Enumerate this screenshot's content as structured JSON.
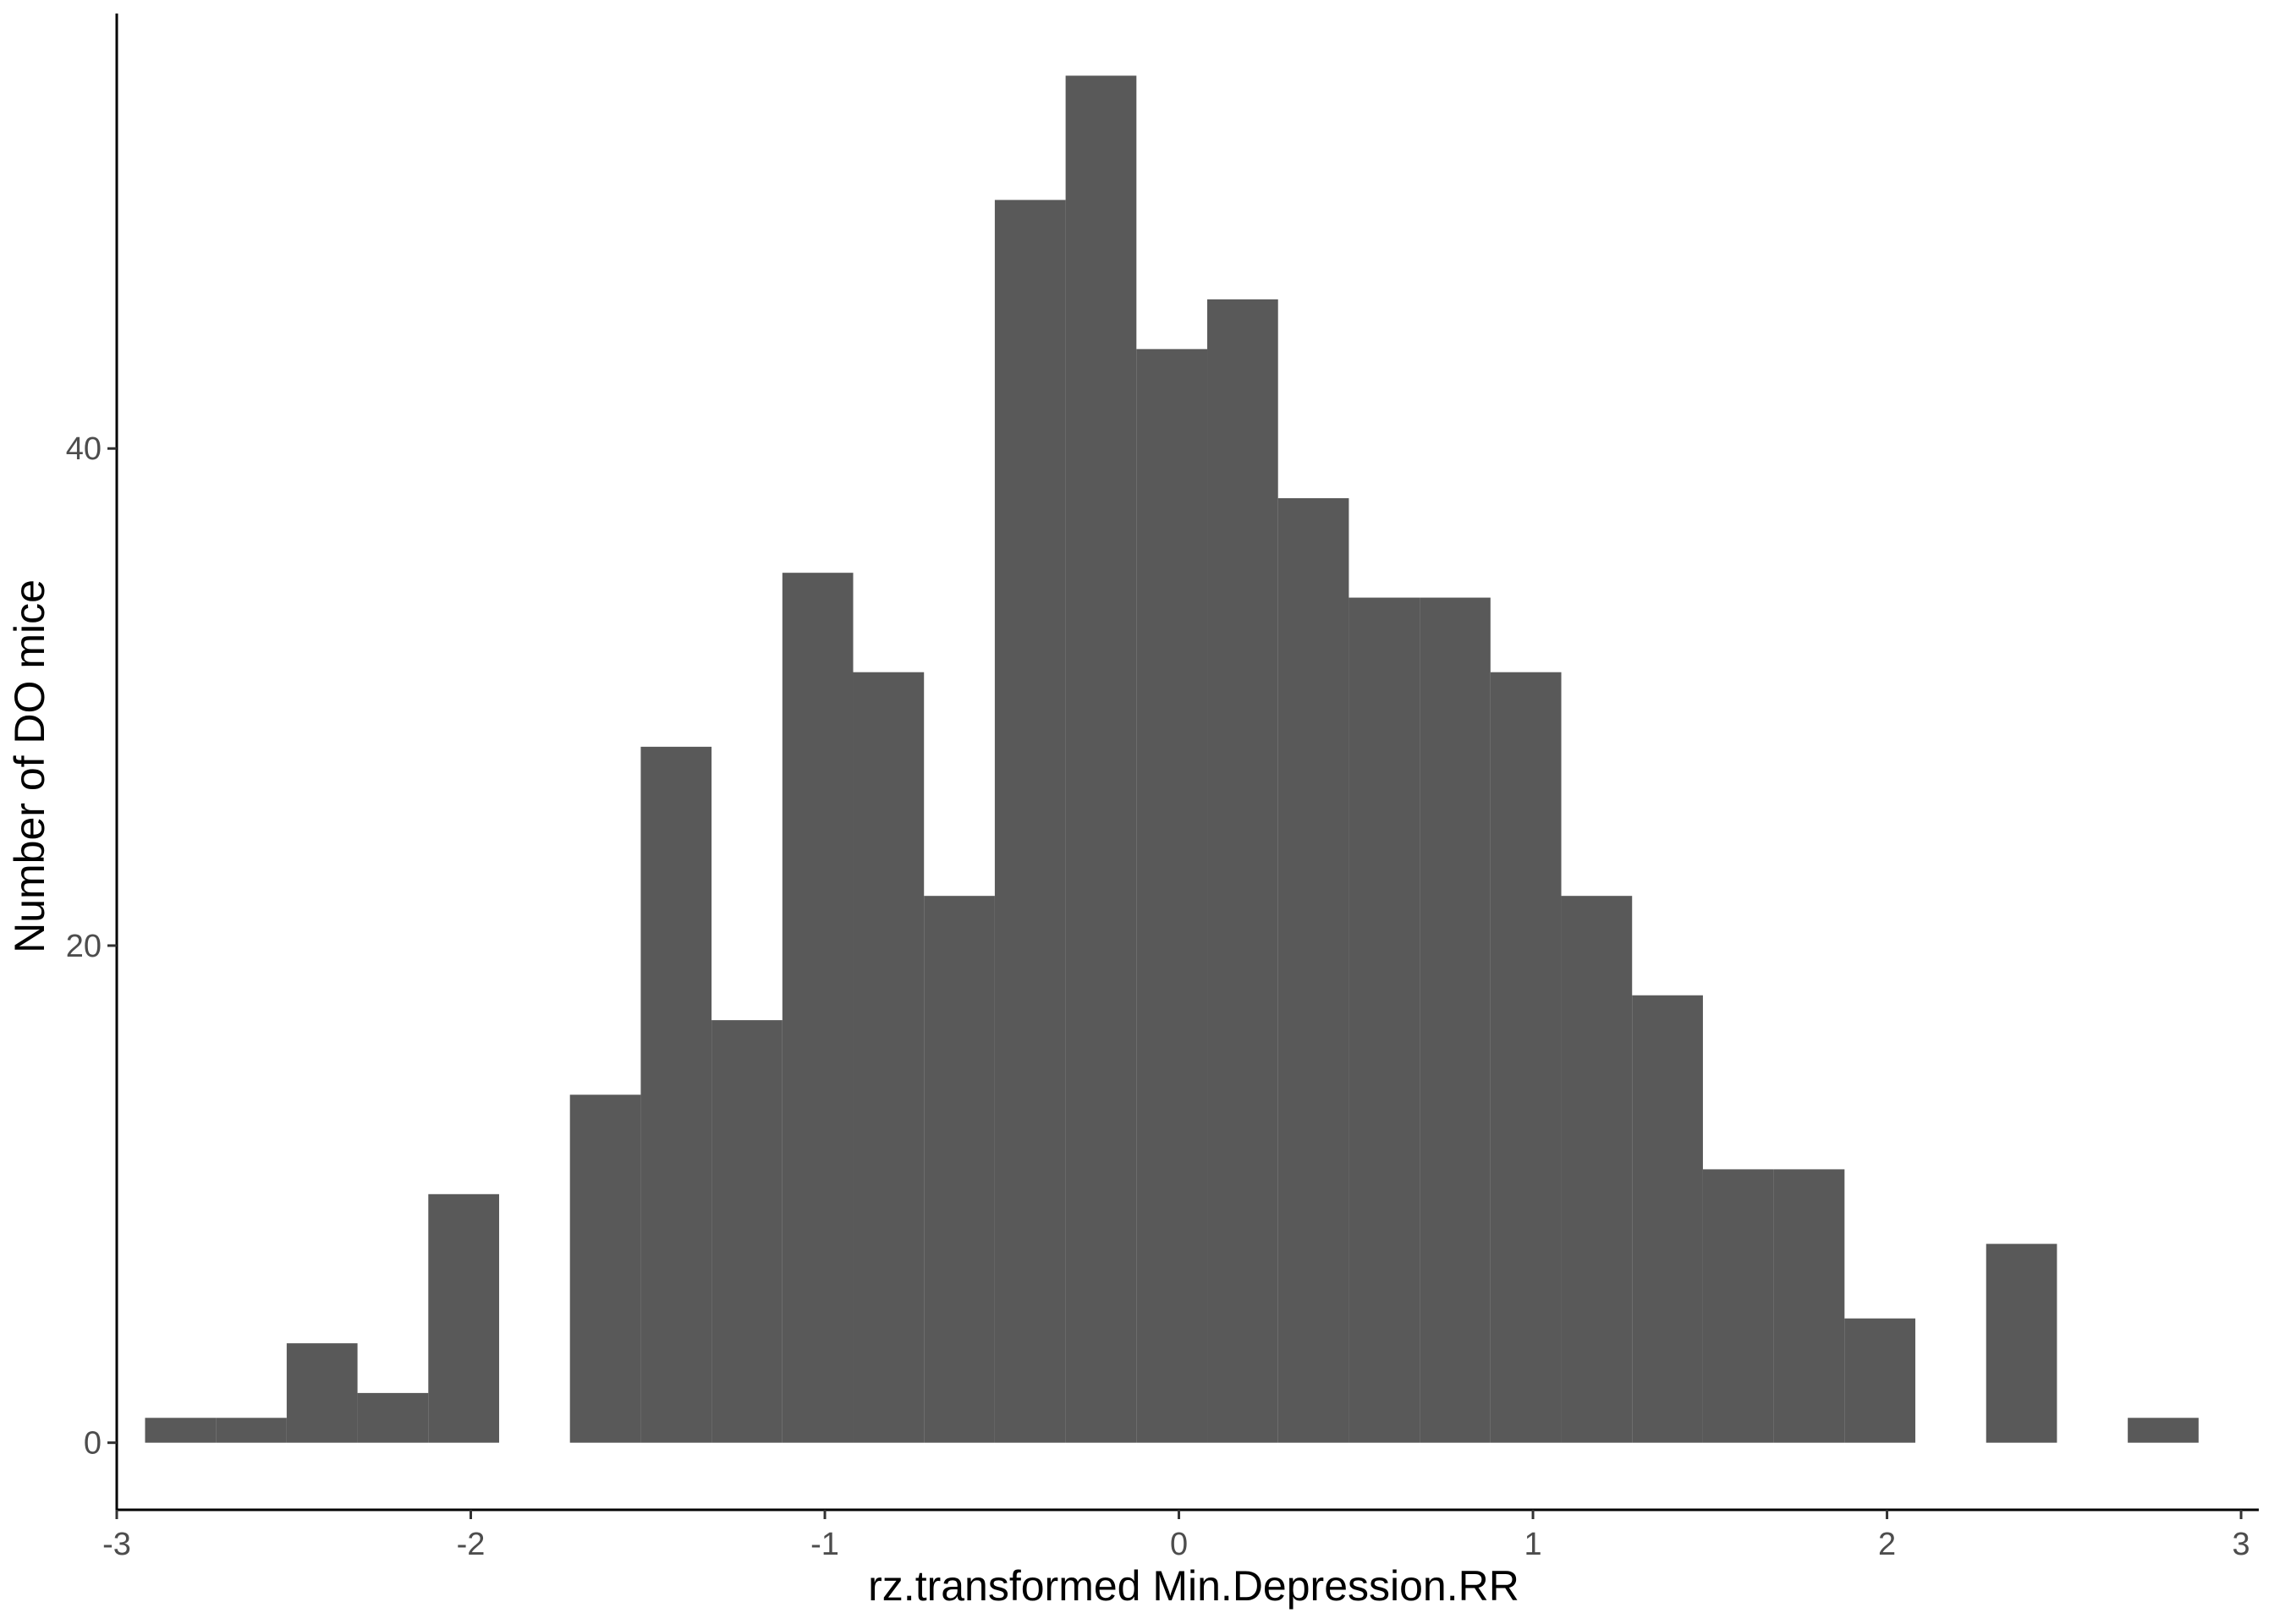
{
  "chart_data": {
    "type": "bar",
    "title": "",
    "xlabel": "rz.transformed Min.Depression.RR",
    "ylabel": "Number of DO mice",
    "bar_color": "#595959",
    "background": "#ffffff",
    "grid": false,
    "xlim": [
      -3.0,
      3.05
    ],
    "ylim": [
      -2.7,
      57.5
    ],
    "x_ticks": [
      -3,
      -2,
      -1,
      0,
      1,
      2,
      3
    ],
    "x_tick_labels": [
      "-3",
      "-2",
      "-1",
      "0",
      "1",
      "2",
      "3"
    ],
    "y_ticks": [
      0,
      20,
      40
    ],
    "y_tick_labels": [
      "0",
      "20",
      "40"
    ],
    "bin_width": 0.2,
    "bins": [
      {
        "x0": -2.92,
        "x1": -2.72,
        "count": 1
      },
      {
        "x0": -2.72,
        "x1": -2.52,
        "count": 1
      },
      {
        "x0": -2.52,
        "x1": -2.32,
        "count": 4
      },
      {
        "x0": -2.32,
        "x1": -2.12,
        "count": 2
      },
      {
        "x0": -2.12,
        "x1": -1.92,
        "count": 10
      },
      {
        "x0": -1.92,
        "x1": -1.72,
        "count": 0
      },
      {
        "x0": -1.72,
        "x1": -1.52,
        "count": 14
      },
      {
        "x0": -1.52,
        "x1": -1.32,
        "count": 28
      },
      {
        "x0": -1.32,
        "x1": -1.12,
        "count": 17
      },
      {
        "x0": -1.12,
        "x1": -0.92,
        "count": 35
      },
      {
        "x0": -0.92,
        "x1": -0.72,
        "count": 31
      },
      {
        "x0": -0.72,
        "x1": -0.52,
        "count": 22
      },
      {
        "x0": -0.52,
        "x1": -0.32,
        "count": 50
      },
      {
        "x0": -0.32,
        "x1": -0.12,
        "count": 55
      },
      {
        "x0": -0.12,
        "x1": 0.08,
        "count": 44
      },
      {
        "x0": 0.08,
        "x1": 0.28,
        "count": 46
      },
      {
        "x0": 0.28,
        "x1": 0.48,
        "count": 38
      },
      {
        "x0": 0.48,
        "x1": 0.68,
        "count": 34
      },
      {
        "x0": 0.68,
        "x1": 0.88,
        "count": 34
      },
      {
        "x0": 0.88,
        "x1": 1.08,
        "count": 31
      },
      {
        "x0": 1.08,
        "x1": 1.28,
        "count": 22
      },
      {
        "x0": 1.28,
        "x1": 1.48,
        "count": 18
      },
      {
        "x0": 1.48,
        "x1": 1.68,
        "count": 11
      },
      {
        "x0": 1.68,
        "x1": 1.88,
        "count": 11
      },
      {
        "x0": 1.88,
        "x1": 2.08,
        "count": 5
      },
      {
        "x0": 2.08,
        "x1": 2.28,
        "count": 0
      },
      {
        "x0": 2.28,
        "x1": 2.48,
        "count": 8
      },
      {
        "x0": 2.48,
        "x1": 2.68,
        "count": 0
      },
      {
        "x0": 2.68,
        "x1": 2.88,
        "count": 1
      }
    ]
  }
}
